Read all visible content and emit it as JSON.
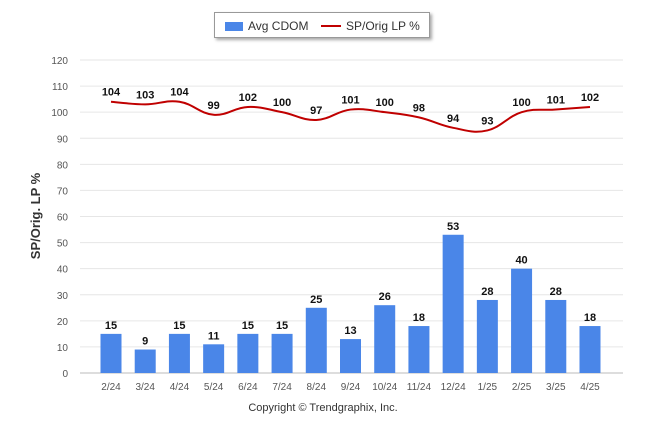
{
  "chart_data": {
    "type": "bar+line",
    "title": "",
    "xlabel": "",
    "ylabel": "SP/Orig. LP %",
    "ylim": [
      0,
      120
    ],
    "yticks": [
      0,
      10,
      20,
      30,
      40,
      50,
      60,
      70,
      80,
      90,
      100,
      110,
      120
    ],
    "grid": true,
    "legend_position": "top-center",
    "categories": [
      "2/24",
      "3/24",
      "4/24",
      "5/24",
      "6/24",
      "7/24",
      "8/24",
      "9/24",
      "10/24",
      "11/24",
      "12/24",
      "1/25",
      "2/25",
      "3/25",
      "4/25"
    ],
    "series": [
      {
        "name": "Avg CDOM",
        "type": "bar",
        "color": "#4a86e8",
        "values": [
          15,
          9,
          15,
          11,
          15,
          15,
          25,
          13,
          26,
          18,
          53,
          28,
          40,
          28,
          18
        ]
      },
      {
        "name": "SP/Orig LP %",
        "type": "line",
        "color": "#c00000",
        "values": [
          104,
          103,
          104,
          99,
          102,
          100,
          97,
          101,
          100,
          98,
          94,
          93,
          100,
          101,
          102
        ]
      }
    ]
  },
  "legend": {
    "bar_label": "Avg CDOM",
    "line_label": "SP/Orig LP %"
  },
  "copyright": "Copyright © Trendgraphix, Inc."
}
